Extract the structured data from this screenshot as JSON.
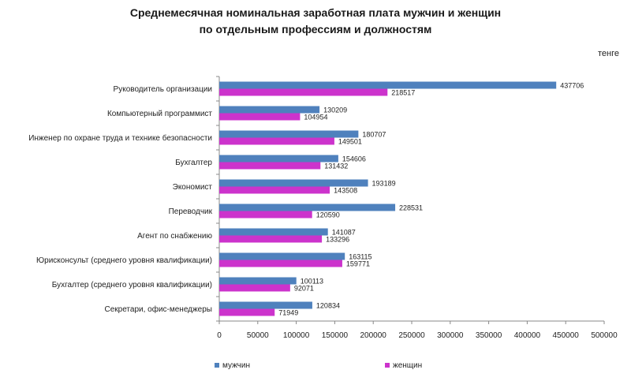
{
  "chart_data": {
    "type": "bar",
    "orientation": "horizontal",
    "title_line1": "Среднемесячная номинальная заработная плата мужчин и женщин",
    "title_line2": "по отдельным профессиям и должностям",
    "unit": "тенге",
    "categories": [
      "Руководитель организации",
      "Компьютерный программист",
      "Инженер по охране труда и технике безопасности",
      "Бухгалтер",
      "Экономист",
      "Переводчик",
      "Агент по снабжению",
      "Юрисконсульт (среднего уровня квалификации)",
      "Бухгалтер (среднего уровня квалификации)",
      "Секретари, офис-менеджеры"
    ],
    "series": [
      {
        "name": "мужчин",
        "color": "#4F81BD",
        "values": [
          437706,
          130209,
          180707,
          154606,
          193189,
          228531,
          141087,
          163115,
          100113,
          120834
        ]
      },
      {
        "name": "женщин",
        "color": "#CC33CC",
        "values": [
          218517,
          104954,
          149501,
          131432,
          143508,
          120590,
          133296,
          159771,
          92071,
          71949
        ]
      }
    ],
    "xlim": [
      0,
      500000
    ],
    "xticks": [
      0,
      50000,
      100000,
      150000,
      200000,
      250000,
      300000,
      350000,
      400000,
      450000,
      500000
    ],
    "legend_position": "bottom",
    "grid": false
  }
}
